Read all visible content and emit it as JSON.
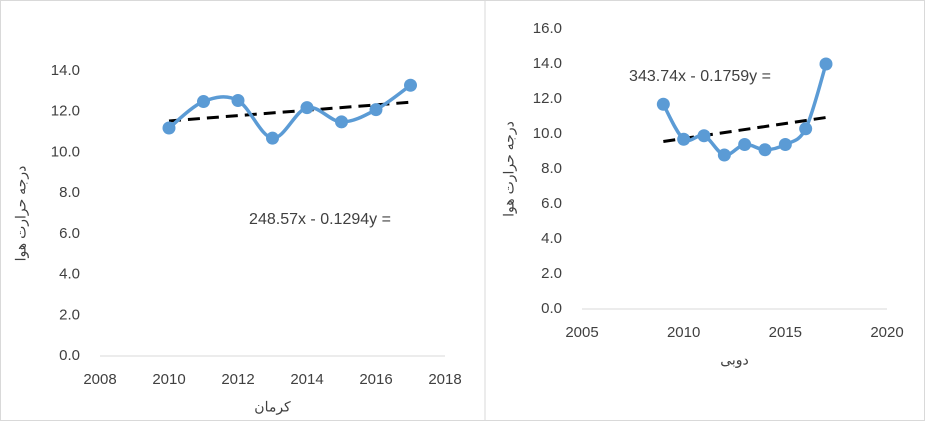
{
  "chart_data": [
    {
      "type": "line",
      "xlabel": "كرمان",
      "ylabel": "درجه حرارت هوا",
      "annotation": "248.57x - 0.1294y =",
      "x": [
        2010,
        2011,
        2012,
        2013,
        2014,
        2015,
        2016,
        2017
      ],
      "series": [
        {
          "color": "#5b9bd5",
          "values": [
            11.2,
            12.5,
            12.55,
            10.7,
            12.2,
            11.5,
            12.1,
            13.3
          ]
        }
      ],
      "xlim": [
        2008,
        2018
      ],
      "xticks": [
        2008,
        2010,
        2012,
        2014,
        2016,
        2018
      ],
      "ylim": [
        0,
        14
      ],
      "yticks": [
        {
          "value": 0,
          "label": "0.0"
        },
        {
          "value": 2,
          "label": "2.0"
        },
        {
          "value": 4,
          "label": "4.0"
        },
        {
          "value": 6,
          "label": "6.0"
        },
        {
          "value": 8,
          "label": "8.0"
        },
        {
          "value": 10,
          "label": "10.0"
        },
        {
          "value": 12,
          "label": "12.0"
        },
        {
          "value": 14,
          "label": "14.0"
        }
      ],
      "trendline": true
    },
    {
      "type": "line",
      "xlabel": "دوبی",
      "ylabel": "درجه حرارت هوا",
      "annotation": "343.74x - 0.1759y =",
      "x": [
        2009,
        2010,
        2011,
        2012,
        2013,
        2014,
        2015,
        2016,
        2017
      ],
      "series": [
        {
          "color": "#5b9bd5",
          "values": [
            11.7,
            9.7,
            9.9,
            8.8,
            9.4,
            9.1,
            9.4,
            10.3,
            14.0
          ]
        }
      ],
      "xlim": [
        2005,
        2020
      ],
      "xticks": [
        2005,
        2010,
        2015,
        2020
      ],
      "ylim": [
        0,
        16
      ],
      "yticks": [
        {
          "value": 0,
          "label": "0.0"
        },
        {
          "value": 2,
          "label": "2.0"
        },
        {
          "value": 4,
          "label": "4.0"
        },
        {
          "value": 6,
          "label": "6.0"
        },
        {
          "value": 8,
          "label": "8.0"
        },
        {
          "value": 10,
          "label": "10.0"
        },
        {
          "value": 12,
          "label": "12.0"
        },
        {
          "value": 14,
          "label": "14.0"
        },
        {
          "value": 16,
          "label": "16.0"
        }
      ],
      "trendline": true
    }
  ]
}
